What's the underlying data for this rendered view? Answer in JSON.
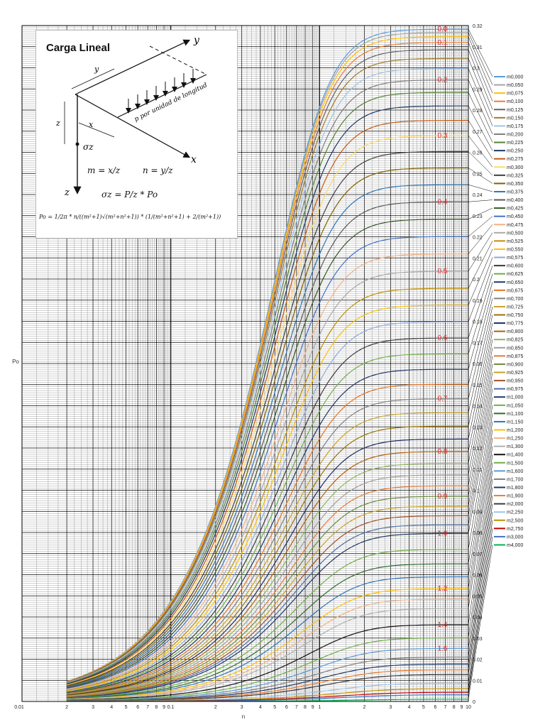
{
  "inset": {
    "title": "Carga Lineal",
    "axis_x": "x",
    "axis_y": "y",
    "axis_z": "z",
    "label_p": "p por unidad de longitud",
    "label_sigma": "σz",
    "label_dim_y": "y",
    "label_dim_z": "z",
    "label_dim_x": "x",
    "eq_m": "m = x/z",
    "eq_n": "n = y/z",
    "eq_sigma": "σz = P/z * Po",
    "eq_po": "Po = 1/2π * n/((m²+1)√(m²+n²+1)) * (1/(m²+n²+1) + 2/(m²+1))"
  },
  "chart_data": {
    "type": "line",
    "x_scale": "log",
    "xlim": [
      0.01,
      10
    ],
    "ylim": [
      0,
      0.32
    ],
    "xlabel": "n",
    "ylabel": "Po",
    "grid": true,
    "legend_placement": "right",
    "x_tick_labels": [
      "0.01",
      "2",
      "3",
      "4",
      "5",
      "6",
      "7",
      "8",
      "9",
      "0.1",
      "2",
      "3",
      "4",
      "5",
      "6",
      "7",
      "8",
      "9",
      "1",
      "2",
      "3",
      "4",
      "5",
      "6",
      "7",
      "8",
      "9",
      "10"
    ],
    "y_tick_labels": [
      "0",
      "0.01",
      "0.02",
      "0.03",
      "0.04",
      "0.05",
      "0.06",
      "0.07",
      "0.08",
      "0.09",
      "0.1",
      "0.11",
      "0.12",
      "0.13",
      "0.14",
      "0.15",
      "0.16",
      "0.17",
      "0.18",
      "0.19",
      "0.2",
      "0.21",
      "0.22",
      "0.23",
      "0.24",
      "0.25",
      "0.26",
      "0.27",
      "0.28",
      "0.29",
      "0.3",
      "0.31",
      "0.32"
    ],
    "curve_labels": [
      {
        "text": "0.0",
        "m": 0.0
      },
      {
        "text": "0.1",
        "m": 0.1
      },
      {
        "text": "0.2",
        "m": 0.2
      },
      {
        "text": "0.3",
        "m": 0.3
      },
      {
        "text": "0.4",
        "m": 0.4
      },
      {
        "text": "0.5",
        "m": 0.5
      },
      {
        "text": "0.6",
        "m": 0.6
      },
      {
        "text": "0.7",
        "m": 0.7
      },
      {
        "text": "0.8",
        "m": 0.8
      },
      {
        "text": "0.9",
        "m": 0.9
      },
      {
        "text": "1.0",
        "m": 1.0
      },
      {
        "text": "1.2",
        "m": 1.2
      },
      {
        "text": "1.4",
        "m": 1.4
      },
      {
        "text": "1.6",
        "m": 1.6
      }
    ],
    "series": [
      {
        "name": "m0,000",
        "m": 0.0,
        "color": "#5b9bd5"
      },
      {
        "name": "m0,050",
        "m": 0.05,
        "color": "#a5a5a5"
      },
      {
        "name": "m0,075",
        "m": 0.075,
        "color": "#ffc000"
      },
      {
        "name": "m0,100",
        "m": 0.1,
        "color": "#ed7d31"
      },
      {
        "name": "m0,125",
        "m": 0.125,
        "color": "#636363"
      },
      {
        "name": "m0,150",
        "m": 0.15,
        "color": "#9e7b2a"
      },
      {
        "name": "m0,175",
        "m": 0.175,
        "color": "#9dc3e6"
      },
      {
        "name": "m0,200",
        "m": 0.2,
        "color": "#7f7f7f"
      },
      {
        "name": "m0,225",
        "m": 0.225,
        "color": "#548235"
      },
      {
        "name": "m0,250",
        "m": 0.25,
        "color": "#1f3864"
      },
      {
        "name": "m0,275",
        "m": 0.275,
        "color": "#c55a11"
      },
      {
        "name": "m0,300",
        "m": 0.3,
        "color": "#ffd966"
      },
      {
        "name": "m0,325",
        "m": 0.325,
        "color": "#404040"
      },
      {
        "name": "m0,350",
        "m": 0.35,
        "color": "#7f6000"
      },
      {
        "name": "m0,375",
        "m": 0.375,
        "color": "#2e75b6"
      },
      {
        "name": "m0,400",
        "m": 0.4,
        "color": "#595959"
      },
      {
        "name": "m0,425",
        "m": 0.425,
        "color": "#375623"
      },
      {
        "name": "m0,450",
        "m": 0.45,
        "color": "#4472c4"
      },
      {
        "name": "m0,475",
        "m": 0.475,
        "color": "#f4b183"
      },
      {
        "name": "m0,500",
        "m": 0.5,
        "color": "#a9a9a9"
      },
      {
        "name": "m0,525",
        "m": 0.525,
        "color": "#bf9000"
      },
      {
        "name": "m0,550",
        "m": 0.55,
        "color": "#ffc000"
      },
      {
        "name": "m0,575",
        "m": 0.575,
        "color": "#8faadc"
      },
      {
        "name": "m0,600",
        "m": 0.6,
        "color": "#3b3b3b"
      },
      {
        "name": "m0,625",
        "m": 0.625,
        "color": "#70ad47"
      },
      {
        "name": "m0,650",
        "m": 0.65,
        "color": "#203864"
      },
      {
        "name": "m0,675",
        "m": 0.675,
        "color": "#e8741c"
      },
      {
        "name": "m0,700",
        "m": 0.7,
        "color": "#808080"
      },
      {
        "name": "m0,725",
        "m": 0.725,
        "color": "#c9a227"
      },
      {
        "name": "m0,750",
        "m": 0.75,
        "color": "#997300"
      },
      {
        "name": "m0,775",
        "m": 0.775,
        "color": "#1f2a60"
      },
      {
        "name": "m0,800",
        "m": 0.8,
        "color": "#b45f06"
      },
      {
        "name": "m0,825",
        "m": 0.825,
        "color": "#8ab55a"
      },
      {
        "name": "m0,850",
        "m": 0.85,
        "color": "#9e9e9e"
      },
      {
        "name": "m0,875",
        "m": 0.875,
        "color": "#e07b39"
      },
      {
        "name": "m0,900",
        "m": 0.9,
        "color": "#6d8b3a"
      },
      {
        "name": "m0,925",
        "m": 0.925,
        "color": "#c9a227"
      },
      {
        "name": "m0,950",
        "m": 0.95,
        "color": "#a0522d"
      },
      {
        "name": "m0,975",
        "m": 0.975,
        "color": "#4a6fa5"
      },
      {
        "name": "m1,000",
        "m": 1.0,
        "color": "#1f3864"
      },
      {
        "name": "m1,050",
        "m": 1.05,
        "color": "#70ad47"
      },
      {
        "name": "m1,100",
        "m": 1.1,
        "color": "#2f6b2f"
      },
      {
        "name": "m1,150",
        "m": 1.15,
        "color": "#2e75b6"
      },
      {
        "name": "m1,200",
        "m": 1.2,
        "color": "#ffc000"
      },
      {
        "name": "m1,250",
        "m": 1.25,
        "color": "#f4b183"
      },
      {
        "name": "m1,300",
        "m": 1.3,
        "color": "#b0b0b0"
      },
      {
        "name": "m1,400",
        "m": 1.4,
        "color": "#111111"
      },
      {
        "name": "m1,500",
        "m": 1.5,
        "color": "#70ad47"
      },
      {
        "name": "m1,600",
        "m": 1.6,
        "color": "#5b9bd5"
      },
      {
        "name": "m1,700",
        "m": 1.7,
        "color": "#7f7f7f"
      },
      {
        "name": "m1,800",
        "m": 1.8,
        "color": "#1f3864"
      },
      {
        "name": "m1,900",
        "m": 1.9,
        "color": "#ed7d31"
      },
      {
        "name": "m2,000",
        "m": 2.0,
        "color": "#3b3b3b"
      },
      {
        "name": "m2,250",
        "m": 2.25,
        "color": "#9dc3e6"
      },
      {
        "name": "m2,500",
        "m": 2.5,
        "color": "#bf9000"
      },
      {
        "name": "m2,750",
        "m": 2.75,
        "color": "#c00000"
      },
      {
        "name": "m3,000",
        "m": 3.0,
        "color": "#4472c4"
      },
      {
        "name": "m4,000",
        "m": 4.0,
        "color": "#00b050"
      }
    ]
  }
}
